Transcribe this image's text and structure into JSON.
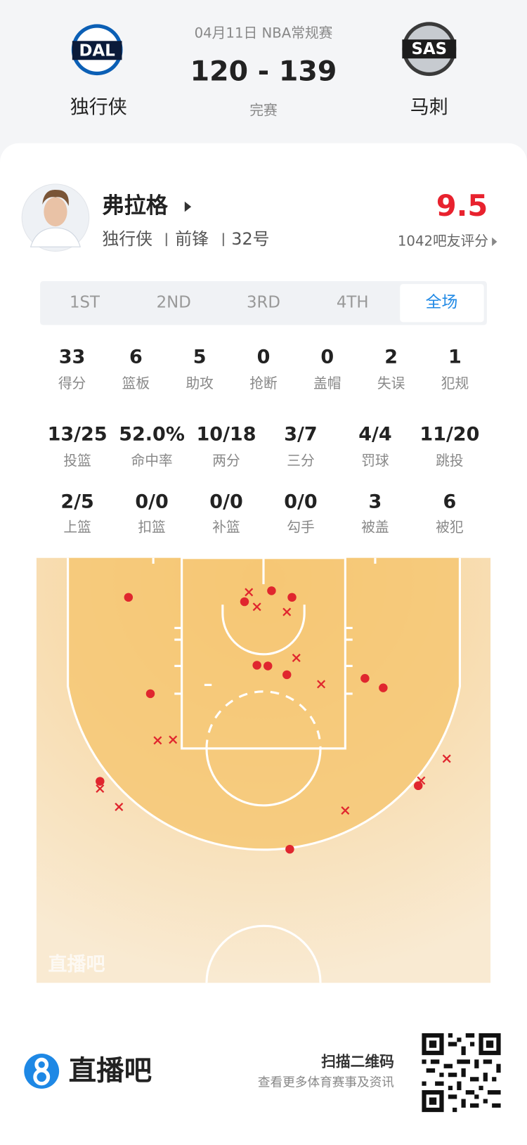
{
  "header": {
    "date": "04月11日 NBA常规赛",
    "score": "120 - 139",
    "status": "完赛",
    "home": {
      "abbr": "DAL",
      "name": "独行侠"
    },
    "away": {
      "abbr": "SAS",
      "name": "马刺"
    }
  },
  "player": {
    "name": "弗拉格",
    "team": "独行侠",
    "position": "前锋",
    "number": "32号",
    "rating": "9.5",
    "rating_count": "1042吧友评分"
  },
  "tabs": [
    "1ST",
    "2ND",
    "3RD",
    "4TH",
    "全场"
  ],
  "stats": [
    [
      {
        "value": "33",
        "label": "得分"
      },
      {
        "value": "6",
        "label": "篮板"
      },
      {
        "value": "5",
        "label": "助攻"
      },
      {
        "value": "0",
        "label": "抢断"
      },
      {
        "value": "0",
        "label": "盖帽"
      },
      {
        "value": "2",
        "label": "失误"
      },
      {
        "value": "1",
        "label": "犯规"
      }
    ],
    [
      {
        "value": "13/25",
        "label": "投篮"
      },
      {
        "value": "52.0%",
        "label": "命中率"
      },
      {
        "value": "10/18",
        "label": "两分"
      },
      {
        "value": "3/7",
        "label": "三分"
      },
      {
        "value": "4/4",
        "label": "罚球"
      },
      {
        "value": "11/20",
        "label": "跳投"
      }
    ],
    [
      {
        "value": "2/5",
        "label": "上篮"
      },
      {
        "value": "0/0",
        "label": "扣篮"
      },
      {
        "value": "0/0",
        "label": "补篮"
      },
      {
        "value": "0/0",
        "label": "勾手"
      },
      {
        "value": "3",
        "label": "被盖"
      },
      {
        "value": "6",
        "label": "被犯"
      }
    ]
  ],
  "watermark": "直播吧",
  "footer": {
    "brand": "直播吧",
    "scan": "扫描二维码",
    "subtitle": "查看更多体育赛事及资讯"
  }
}
